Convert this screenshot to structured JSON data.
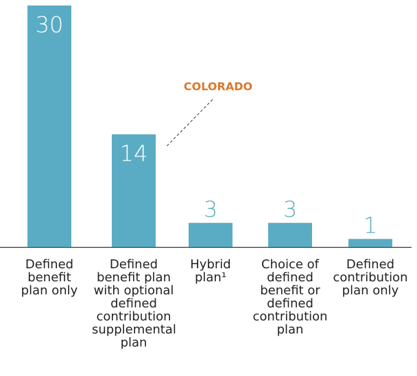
{
  "chart_data": {
    "type": "bar",
    "categories": [
      "Defined benefit plan only",
      "Defined benefit plan with optional defined contribution supplemental plan",
      "Hybrid plan¹",
      "Choice of defined benefit or defined contribution plan",
      "Defined contribution plan only"
    ],
    "values": [
      30,
      14,
      3,
      3,
      1
    ],
    "color": "#5aacc4",
    "ylim": [
      0,
      30
    ],
    "annotation": "COLORADO",
    "annotation_color": "#d9782a"
  }
}
